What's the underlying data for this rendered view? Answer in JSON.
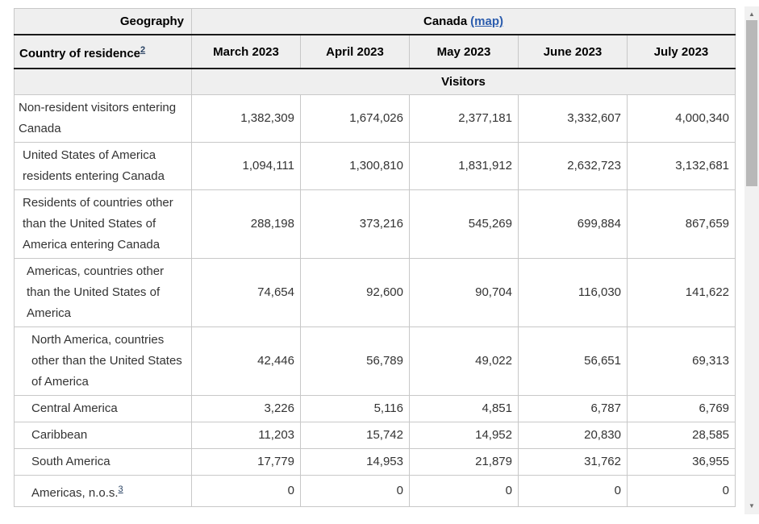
{
  "table": {
    "corner_header": "Geography",
    "geo_name": "Canada",
    "geo_map_link": "(map)",
    "row_dim_label": "Country of residence",
    "row_dim_footnote": "2",
    "columns": [
      "March 2023",
      "April 2023",
      "May 2023",
      "June 2023",
      "July 2023"
    ],
    "measure_band": "Visitors",
    "rows": [
      {
        "label": "Non-resident visitors entering Canada",
        "indent": 0,
        "footnote": "",
        "values": [
          "1,382,309",
          "1,674,026",
          "2,377,181",
          "3,332,607",
          "4,000,340"
        ]
      },
      {
        "label": "United States of America residents entering Canada",
        "indent": 1,
        "footnote": "",
        "values": [
          "1,094,111",
          "1,300,810",
          "1,831,912",
          "2,632,723",
          "3,132,681"
        ]
      },
      {
        "label": "Residents of countries other than the United States of America entering Canada",
        "indent": 1,
        "footnote": "",
        "values": [
          "288,198",
          "373,216",
          "545,269",
          "699,884",
          "867,659"
        ]
      },
      {
        "label": "Americas, countries other than the United States of America",
        "indent": 2,
        "footnote": "",
        "values": [
          "74,654",
          "92,600",
          "90,704",
          "116,030",
          "141,622"
        ]
      },
      {
        "label": "North America, countries other than the United States of America",
        "indent": 3,
        "footnote": "",
        "values": [
          "42,446",
          "56,789",
          "49,022",
          "56,651",
          "69,313"
        ]
      },
      {
        "label": "Central America",
        "indent": 3,
        "footnote": "",
        "values": [
          "3,226",
          "5,116",
          "4,851",
          "6,787",
          "6,769"
        ]
      },
      {
        "label": "Caribbean",
        "indent": 3,
        "footnote": "",
        "values": [
          "11,203",
          "15,742",
          "14,952",
          "20,830",
          "28,585"
        ]
      },
      {
        "label": "South America",
        "indent": 3,
        "footnote": "",
        "values": [
          "17,779",
          "14,953",
          "21,879",
          "31,762",
          "36,955"
        ]
      },
      {
        "label": "Americas, n.o.s.",
        "indent": 3,
        "footnote": "3",
        "values": [
          "0",
          "0",
          "0",
          "0",
          "0"
        ]
      }
    ]
  },
  "icons": {
    "scroll_up": "▲",
    "scroll_down": "▼"
  },
  "colors": {
    "header_bg": "#efefef",
    "grid_border": "#c8c8c8",
    "strong_border": "#1a1a1a",
    "link_blue": "#2b5cad",
    "footnote_link_blue": "#284162",
    "body_text": "#333333",
    "scrollbar_track": "#f1f1f1",
    "scrollbar_thumb": "#b8b8b8"
  }
}
